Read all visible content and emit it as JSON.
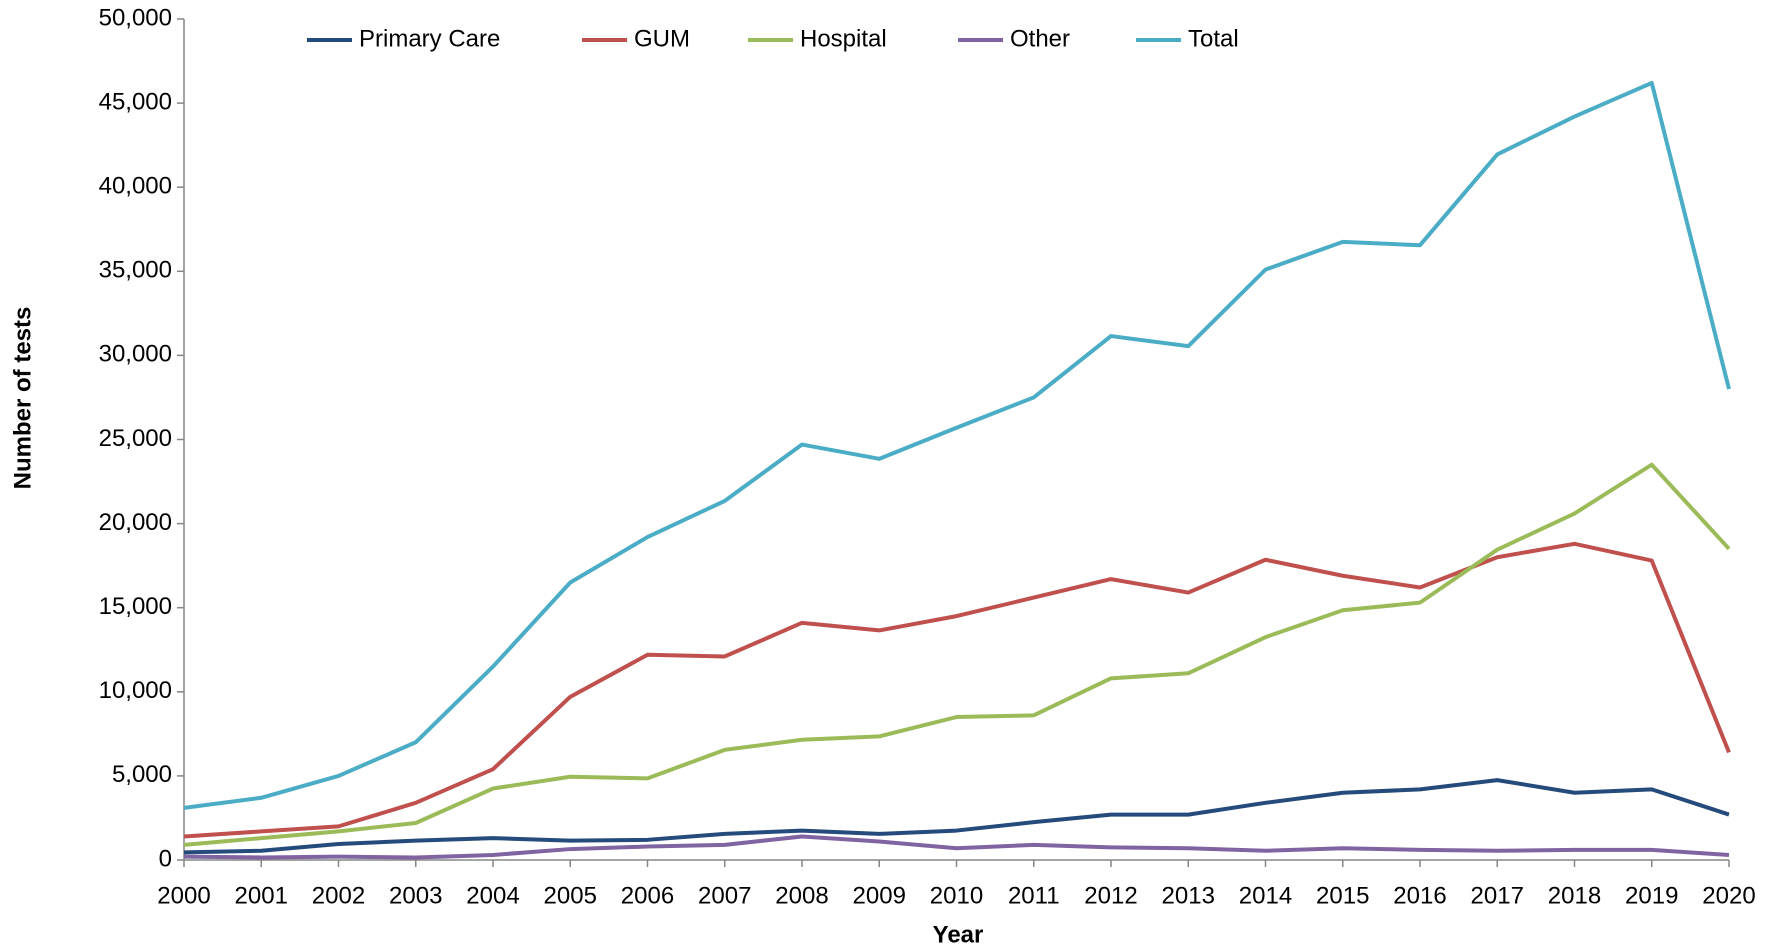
{
  "chart_data": {
    "type": "line",
    "x_label": "Year",
    "y_label": "Number of tests",
    "categories": [
      "2000",
      "2001",
      "2002",
      "2003",
      "2004",
      "2005",
      "2006",
      "2007",
      "2008",
      "2009",
      "2010",
      "2011",
      "2012",
      "2013",
      "2014",
      "2015",
      "2016",
      "2017",
      "2018",
      "2019",
      "2020"
    ],
    "series": [
      {
        "name": "Primary Care",
        "color": "#254a7c",
        "values": [
          450,
          550,
          950,
          1150,
          1300,
          1150,
          1200,
          1550,
          1750,
          1550,
          1750,
          2250,
          2700,
          2700,
          3400,
          4000,
          4200,
          4750,
          4000,
          4200,
          2700
        ]
      },
      {
        "name": "GUM",
        "color": "#c0504d",
        "values": [
          1400,
          1700,
          2000,
          3400,
          5400,
          9700,
          12200,
          12100,
          14100,
          13650,
          14500,
          15600,
          16700,
          15900,
          17850,
          16900,
          16200,
          18000,
          18800,
          17800,
          6400
        ]
      },
      {
        "name": "Hospital",
        "color": "#9bbb59",
        "values": [
          900,
          1300,
          1700,
          2200,
          4250,
          4950,
          4850,
          6550,
          7150,
          7350,
          8500,
          8600,
          10800,
          11100,
          13250,
          14850,
          15300,
          18450,
          20600,
          23500,
          18500
        ]
      },
      {
        "name": "Other",
        "color": "#8064a2",
        "values": [
          200,
          150,
          200,
          150,
          300,
          650,
          800,
          900,
          1400,
          1100,
          700,
          900,
          750,
          700,
          550,
          700,
          600,
          550,
          600,
          600,
          300
        ]
      },
      {
        "name": "Total",
        "color": "#4bacc6",
        "values": [
          3100,
          3700,
          5000,
          7000,
          11500,
          16500,
          19200,
          21350,
          24700,
          23850,
          25700,
          27500,
          31150,
          30550,
          35100,
          36750,
          36550,
          41950,
          44200,
          46200,
          28000
        ]
      }
    ],
    "ylim": [
      0,
      50000
    ],
    "yticks": [
      0,
      {
        "value": 5000,
        "label": "5,000"
      },
      {
        "value": 10000,
        "label": "10,000"
      },
      {
        "value": 15000,
        "label": "15,000"
      },
      {
        "value": 20000,
        "label": "20,000"
      },
      {
        "value": 25000,
        "label": "25,000"
      },
      {
        "value": 30000,
        "label": "30,000"
      },
      {
        "value": 35000,
        "label": "35,000"
      },
      {
        "value": 40000,
        "label": "40,000"
      },
      {
        "value": 45000,
        "label": "45,000"
      },
      {
        "value": 50000,
        "label": "50,000"
      }
    ],
    "legend": "top",
    "grid": false
  }
}
